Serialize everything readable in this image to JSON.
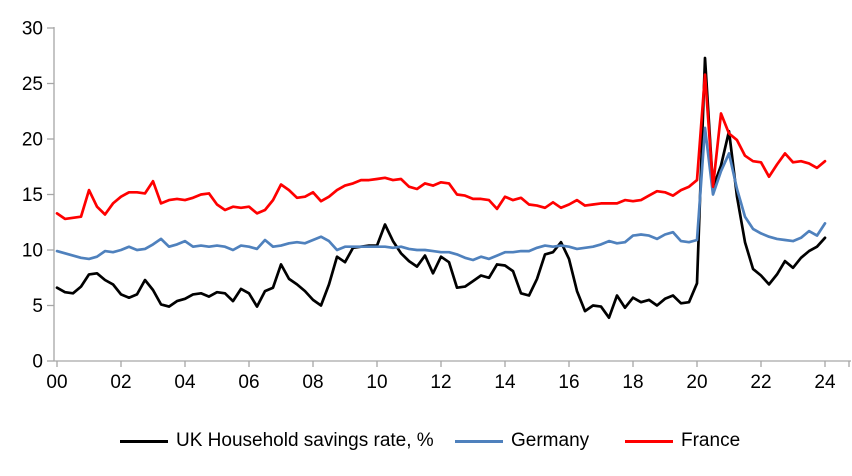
{
  "colors": {
    "axis": "#A6A6A6",
    "tick_label": "#000000",
    "uk": "#000000",
    "germany": "#4F81BD",
    "france": "#FF0000",
    "background": "#FFFFFF"
  },
  "chart_data": {
    "type": "line",
    "title": "",
    "xlabel": "",
    "ylabel": "",
    "frequency": "quarterly",
    "x_start": "2000Q1",
    "x_end": "2024Q1",
    "ylim": [
      0,
      30
    ],
    "y_ticks": [
      0,
      5,
      10,
      15,
      20,
      25,
      30
    ],
    "x_tick_labels": [
      "00",
      "02",
      "04",
      "06",
      "08",
      "10",
      "12",
      "14",
      "16",
      "18",
      "20",
      "22",
      "24"
    ],
    "grid": false,
    "legend_position": "bottom",
    "series": [
      {
        "name": "UK Household savings rate, %",
        "color": "#000000",
        "values": [
          6.6,
          6.2,
          6.1,
          6.7,
          7.8,
          7.9,
          7.3,
          6.9,
          6.0,
          5.7,
          6.0,
          7.3,
          6.4,
          5.1,
          4.9,
          5.4,
          5.6,
          6.0,
          6.1,
          5.8,
          6.2,
          6.1,
          5.4,
          6.5,
          6.1,
          4.9,
          6.3,
          6.6,
          8.7,
          7.4,
          6.9,
          6.3,
          5.5,
          5.0,
          6.9,
          9.4,
          8.9,
          10.2,
          10.3,
          10.4,
          10.4,
          12.3,
          10.8,
          9.7,
          9.0,
          8.5,
          9.5,
          7.9,
          9.4,
          8.9,
          6.6,
          6.7,
          7.2,
          7.7,
          7.5,
          8.7,
          8.6,
          8.1,
          6.1,
          5.9,
          7.4,
          9.6,
          9.8,
          10.7,
          9.2,
          6.3,
          4.5,
          5.0,
          4.9,
          3.9,
          5.9,
          4.8,
          5.7,
          5.3,
          5.5,
          5.0,
          5.6,
          5.9,
          5.2,
          5.3,
          7.0,
          27.3,
          15.6,
          17.6,
          20.7,
          14.8,
          10.7,
          8.3,
          7.7,
          6.9,
          7.8,
          9.0,
          8.4,
          9.3,
          9.9,
          10.3,
          11.1
        ]
      },
      {
        "name": "Germany",
        "color": "#4F81BD",
        "values": [
          9.9,
          9.7,
          9.5,
          9.3,
          9.2,
          9.4,
          9.9,
          9.8,
          10.0,
          10.3,
          10.0,
          10.1,
          10.5,
          11.0,
          10.3,
          10.5,
          10.8,
          10.3,
          10.4,
          10.3,
          10.4,
          10.3,
          10.0,
          10.4,
          10.3,
          10.1,
          10.9,
          10.3,
          10.4,
          10.6,
          10.7,
          10.6,
          10.9,
          11.2,
          10.8,
          10.0,
          10.3,
          10.3,
          10.3,
          10.3,
          10.3,
          10.3,
          10.2,
          10.3,
          10.1,
          10.0,
          10.0,
          9.9,
          9.8,
          9.8,
          9.6,
          9.3,
          9.1,
          9.4,
          9.2,
          9.5,
          9.8,
          9.8,
          9.9,
          9.9,
          10.2,
          10.4,
          10.3,
          10.4,
          10.3,
          10.1,
          10.2,
          10.3,
          10.5,
          10.8,
          10.6,
          10.7,
          11.3,
          11.4,
          11.3,
          11.0,
          11.4,
          11.6,
          10.8,
          10.7,
          10.9,
          21.0,
          15.0,
          17.1,
          18.7,
          15.5,
          13.0,
          11.9,
          11.5,
          11.2,
          11.0,
          10.9,
          10.8,
          11.1,
          11.7,
          11.3,
          12.4
        ]
      },
      {
        "name": "France",
        "color": "#FF0000",
        "values": [
          13.3,
          12.8,
          12.9,
          13.0,
          15.4,
          13.9,
          13.2,
          14.2,
          14.8,
          15.2,
          15.2,
          15.1,
          16.2,
          14.2,
          14.5,
          14.6,
          14.5,
          14.7,
          15.0,
          15.1,
          14.1,
          13.6,
          13.9,
          13.8,
          13.9,
          13.3,
          13.6,
          14.5,
          15.9,
          15.4,
          14.7,
          14.8,
          15.2,
          14.4,
          14.8,
          15.4,
          15.8,
          16.0,
          16.3,
          16.3,
          16.4,
          16.5,
          16.3,
          16.4,
          15.7,
          15.5,
          16.0,
          15.8,
          16.1,
          16.0,
          15.0,
          14.9,
          14.6,
          14.6,
          14.5,
          13.7,
          14.8,
          14.5,
          14.7,
          14.1,
          14.0,
          13.8,
          14.3,
          13.8,
          14.1,
          14.5,
          14.0,
          14.1,
          14.2,
          14.2,
          14.2,
          14.5,
          14.4,
          14.5,
          14.9,
          15.3,
          15.2,
          14.9,
          15.4,
          15.7,
          16.3,
          25.8,
          15.7,
          22.3,
          20.5,
          19.9,
          18.5,
          18.0,
          17.9,
          16.6,
          17.7,
          18.7,
          17.9,
          18.0,
          17.8,
          17.4,
          18.0
        ]
      }
    ]
  }
}
